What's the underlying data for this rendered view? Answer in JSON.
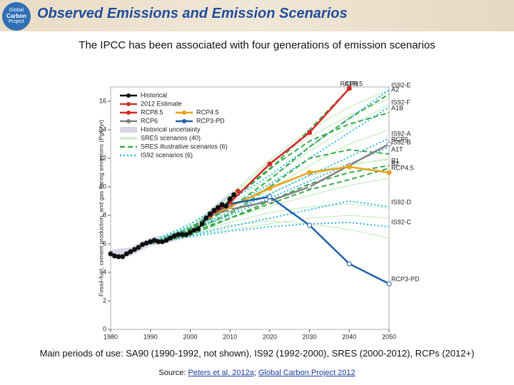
{
  "header": {
    "title": "Observed Emissions and Emission Scenarios",
    "subtitle": "The IPCC has been associated with four generations of emission scenarios",
    "logo": [
      "Global",
      "Carbon",
      "Project"
    ]
  },
  "chart_data": {
    "type": "line",
    "y_label": "Fossil-fuel, cement production, and gas flaring emissions (PgC/yr)",
    "xlim": [
      1980,
      2050
    ],
    "xticks": [
      1980,
      1990,
      2000,
      2010,
      2020,
      2030,
      2040,
      2050
    ],
    "ylim": [
      0,
      17
    ],
    "yticks": [
      0,
      2,
      4,
      6,
      8,
      10,
      12,
      14,
      16
    ],
    "legend": [
      {
        "name": "Historical",
        "color": "#111111",
        "marker": true
      },
      {
        "name": "2012 Estimate",
        "color": "#c0392b",
        "marker": true
      },
      {
        "name": "RCP8.5",
        "color": "#d62728",
        "marker": true
      },
      {
        "name": "RCP4.5",
        "color": "#e8a21c",
        "marker": true
      },
      {
        "name": "RCP6",
        "color": "#808080",
        "marker": true
      },
      {
        "name": "RCP3-PD",
        "color": "#1f5fa8",
        "marker": true
      },
      {
        "name": "Historical uncertainty",
        "color": "#d4d6e6",
        "swatch": true
      },
      {
        "name": "SRES scenarios (40)",
        "color": "#bfe8b8"
      },
      {
        "name": "SRES illustrative scenarios (6)",
        "color": "#3aaa4a",
        "dash": "7,4"
      },
      {
        "name": "IS92 scenarios (6)",
        "color": "#2bb4e8",
        "dash": "2,3"
      }
    ],
    "series": [
      {
        "type": "band",
        "color": "#d4d6e6",
        "x": [
          1980,
          1985,
          1990,
          1995,
          2000,
          2005,
          2011
        ],
        "low": [
          5.0,
          5.15,
          5.85,
          6.1,
          6.5,
          7.75,
          9.0
        ],
        "high": [
          5.6,
          5.75,
          6.45,
          6.7,
          7.1,
          8.45,
          9.8
        ]
      },
      {
        "color": "#bfe8b8",
        "width": 1,
        "x": [
          1990,
          2000,
          2010,
          2020,
          2030,
          2040,
          2050
        ],
        "values": [
          6.0,
          7.0,
          8.3,
          9.5,
          10.8,
          11.5,
          12.0
        ]
      },
      {
        "color": "#bfe8b8",
        "width": 1,
        "x": [
          1990,
          2000,
          2010,
          2020,
          2030,
          2040,
          2050
        ],
        "values": [
          6.0,
          7.2,
          8.8,
          10.6,
          12.5,
          14.2,
          15.8
        ]
      },
      {
        "color": "#bfe8b8",
        "width": 1,
        "x": [
          1990,
          2000,
          2010,
          2020,
          2030,
          2040,
          2050
        ],
        "values": [
          6.0,
          6.8,
          7.5,
          8.2,
          8.6,
          8.8,
          8.5
        ]
      },
      {
        "color": "#bfe8b8",
        "width": 1,
        "x": [
          1990,
          2000,
          2010,
          2020,
          2030,
          2040,
          2050
        ],
        "values": [
          6.0,
          7.1,
          9.2,
          11.8,
          13.5,
          15.0,
          16.2
        ]
      },
      {
        "color": "#bfe8b8",
        "width": 1,
        "x": [
          1990,
          2000,
          2010,
          2020,
          2030,
          2040,
          2050
        ],
        "values": [
          6.0,
          6.7,
          7.3,
          7.6,
          7.4,
          7.0,
          6.4
        ]
      },
      {
        "color": "#bfe8b8",
        "width": 1,
        "x": [
          1990,
          2000,
          2010,
          2020,
          2030,
          2040,
          2050
        ],
        "values": [
          6.0,
          6.9,
          8.0,
          9.8,
          11.5,
          13.0,
          14.0
        ]
      },
      {
        "color": "#bfe8b8",
        "width": 1,
        "x": [
          1990,
          2000,
          2010,
          2020,
          2030,
          2040,
          2050
        ],
        "values": [
          6.0,
          7.0,
          8.6,
          10.0,
          11.0,
          11.6,
          11.9
        ]
      },
      {
        "color": "#bfe8b8",
        "width": 1,
        "x": [
          1990,
          2000,
          2010,
          2020,
          2030,
          2040,
          2050
        ],
        "values": [
          6.0,
          6.6,
          7.0,
          7.4,
          7.8,
          8.0,
          7.8
        ]
      },
      {
        "color": "#bfe8b8",
        "width": 1,
        "x": [
          1990,
          2000,
          2010,
          2020,
          2030,
          2040,
          2050
        ],
        "values": [
          6.0,
          7.3,
          9.4,
          11.9,
          14.0,
          15.6,
          16.8
        ]
      },
      {
        "color": "#bfe8b8",
        "width": 1,
        "x": [
          1990,
          2000,
          2010,
          2020,
          2030,
          2040,
          2050
        ],
        "values": [
          6.0,
          6.8,
          7.8,
          8.6,
          9.4,
          10.1,
          10.6
        ]
      },
      {
        "label": "IS92-E",
        "color": "#2bb4e8",
        "dash": "2,3",
        "width": 2,
        "x": [
          1990,
          2000,
          2010,
          2020,
          2030,
          2040,
          2050
        ],
        "values": [
          6.1,
          7.4,
          9.0,
          10.8,
          12.8,
          14.8,
          16.8
        ]
      },
      {
        "label": "IS92-F",
        "color": "#2bb4e8",
        "dash": "2,3",
        "width": 2,
        "x": [
          1990,
          2000,
          2010,
          2020,
          2030,
          2040,
          2050
        ],
        "values": [
          6.1,
          7.2,
          8.6,
          10.2,
          12.0,
          13.8,
          15.6
        ]
      },
      {
        "label": "IS92-A",
        "color": "#2bb4e8",
        "dash": "2,3",
        "width": 2,
        "x": [
          1990,
          2000,
          2010,
          2020,
          2030,
          2040,
          2050
        ],
        "values": [
          6.1,
          7.0,
          8.2,
          9.5,
          10.8,
          12.1,
          13.4
        ]
      },
      {
        "label": "IS92-B",
        "color": "#2bb4e8",
        "dash": "2,3",
        "width": 2,
        "x": [
          1990,
          2000,
          2010,
          2020,
          2030,
          2040,
          2050
        ],
        "values": [
          6.1,
          6.9,
          8.0,
          9.2,
          10.4,
          11.6,
          12.8
        ]
      },
      {
        "label": "IS92-D",
        "color": "#2bb4e8",
        "dash": "2,3",
        "width": 2,
        "x": [
          1990,
          2000,
          2010,
          2020,
          2030,
          2040,
          2050
        ],
        "values": [
          6.1,
          6.6,
          7.2,
          7.8,
          8.4,
          9.0,
          8.6
        ]
      },
      {
        "label": "IS92-C",
        "color": "#2bb4e8",
        "dash": "2,3",
        "width": 2,
        "x": [
          1990,
          2000,
          2010,
          2020,
          2030,
          2040,
          2050
        ],
        "values": [
          6.1,
          6.5,
          6.9,
          7.2,
          7.4,
          7.5,
          7.2
        ]
      },
      {
        "label": "A1FI",
        "color": "#3aaa4a",
        "dash": "7,4",
        "width": 2,
        "x": [
          1990,
          2000,
          2010,
          2020,
          2030,
          2040
        ],
        "values": [
          6.0,
          7.1,
          9.0,
          11.2,
          14.0,
          16.9
        ]
      },
      {
        "label": "A2",
        "color": "#3aaa4a",
        "dash": "7,4",
        "width": 2,
        "x": [
          1990,
          2000,
          2010,
          2020,
          2030,
          2040,
          2050
        ],
        "values": [
          6.0,
          7.0,
          8.5,
          10.5,
          12.8,
          14.8,
          16.5
        ]
      },
      {
        "label": "A1B",
        "color": "#3aaa4a",
        "dash": "7,4",
        "width": 2,
        "x": [
          1990,
          2000,
          2010,
          2020,
          2030,
          2040,
          2050
        ],
        "values": [
          6.0,
          7.0,
          9.0,
          11.3,
          13.2,
          14.4,
          15.2
        ]
      },
      {
        "label": "A1T",
        "color": "#3aaa4a",
        "dash": "7,4",
        "width": 2,
        "x": [
          1990,
          2000,
          2010,
          2020,
          2030,
          2040,
          2050
        ],
        "values": [
          6.0,
          6.9,
          8.1,
          10.0,
          12.0,
          12.6,
          12.3
        ]
      },
      {
        "label": "B1",
        "color": "#3aaa4a",
        "dash": "7,4",
        "width": 2,
        "x": [
          1990,
          2000,
          2010,
          2020,
          2030,
          2040,
          2050
        ],
        "values": [
          6.0,
          6.6,
          7.8,
          9.0,
          10.2,
          11.0,
          11.5
        ]
      },
      {
        "label": "B2",
        "color": "#3aaa4a",
        "dash": "7,4",
        "width": 2,
        "x": [
          1990,
          2000,
          2010,
          2020,
          2030,
          2040,
          2050
        ],
        "values": [
          6.0,
          6.8,
          7.8,
          8.8,
          9.8,
          10.5,
          11.3
        ]
      },
      {
        "label": "RCP6",
        "color": "#808080",
        "width": 2.5,
        "marker": true,
        "x": [
          2005,
          2010,
          2020,
          2030,
          2040,
          2050
        ],
        "values": [
          8.0,
          8.4,
          9.0,
          10.0,
          11.5,
          13.0
        ]
      },
      {
        "label": "RCP4.5",
        "color": "#e8a21c",
        "width": 2.5,
        "marker": true,
        "x": [
          2005,
          2010,
          2020,
          2030,
          2040,
          2050
        ],
        "values": [
          8.0,
          8.6,
          9.9,
          11.0,
          11.4,
          11.0
        ]
      },
      {
        "label": "RCP3-PD",
        "color": "#1f5fa8",
        "width": 2.5,
        "marker": true,
        "x": [
          2005,
          2010,
          2020,
          2030,
          2040,
          2050
        ],
        "values": [
          8.0,
          8.8,
          9.3,
          7.3,
          4.6,
          3.2
        ]
      },
      {
        "label": "RCP8.5",
        "color": "#d62728",
        "width": 2.5,
        "marker": true,
        "x": [
          2005,
          2010,
          2020,
          2030,
          2040
        ],
        "values": [
          8.0,
          8.9,
          11.6,
          13.8,
          16.9
        ]
      },
      {
        "color": "#111111",
        "width": 2.5,
        "marker": true,
        "x": [
          1980,
          1981,
          1982,
          1983,
          1984,
          1985,
          1986,
          1987,
          1988,
          1989,
          1990,
          1991,
          1992,
          1993,
          1994,
          1995,
          1996,
          1997,
          1998,
          1999,
          2000,
          2001,
          2002,
          2003,
          2004,
          2005,
          2006,
          2007,
          2008,
          2009,
          2010,
          2011
        ],
        "values": [
          5.3,
          5.15,
          5.1,
          5.1,
          5.3,
          5.45,
          5.6,
          5.75,
          5.95,
          6.05,
          6.15,
          6.25,
          6.15,
          6.15,
          6.25,
          6.4,
          6.55,
          6.65,
          6.65,
          6.65,
          6.8,
          6.95,
          7.05,
          7.4,
          7.8,
          8.1,
          8.35,
          8.55,
          8.75,
          8.65,
          9.15,
          9.45
        ]
      },
      {
        "color": "#c0392b",
        "width": 2.5,
        "marker": true,
        "x": [
          2012
        ],
        "values": [
          9.7
        ]
      }
    ]
  },
  "footer": {
    "periods": "Main periods of use: SA90 (1990-1992, not shown), IS92 (1992-2000), SRES (2000-2012), RCPs (2012+)",
    "source": "Source:",
    "links": [
      "Peters et al. 2012a",
      "Global Carbon Project 2012"
    ],
    "separator": ";"
  }
}
